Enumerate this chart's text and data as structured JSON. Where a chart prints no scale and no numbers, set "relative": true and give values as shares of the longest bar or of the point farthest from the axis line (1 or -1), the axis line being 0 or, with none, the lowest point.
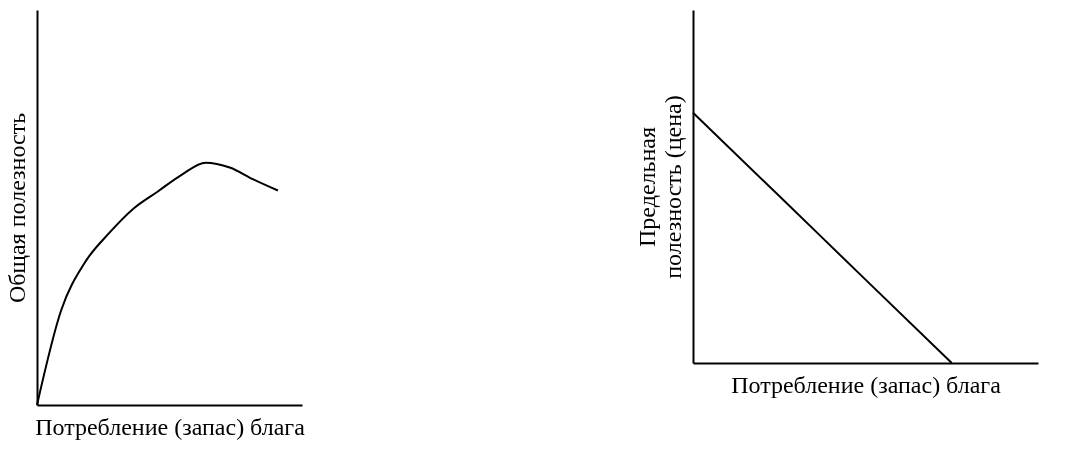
{
  "chart_data": [
    {
      "type": "line",
      "relative": true,
      "xlabel": "Потребление (запас) блага",
      "ylabel": "Общая полезность",
      "categories": [
        null,
        null,
        null,
        null,
        null,
        null,
        null,
        null,
        null,
        null,
        null,
        null
      ],
      "grid": false,
      "series": [
        {
          "color": "#000000",
          "values": [
            0,
            0.39,
            0.59,
            0.71,
            0.81,
            0.88,
            0.95,
            1,
            0.98,
            0.93,
            0.885,
            null
          ]
        }
      ]
    },
    {
      "type": "line",
      "relative": true,
      "xlabel": "Потребление (запас) блага",
      "ylabel": "Предельная\nполезность (цена)",
      "categories": [
        null,
        null,
        null,
        null,
        null
      ],
      "grid": false,
      "series": [
        {
          "color": "#000000",
          "values": [
            1,
            0.667,
            0.333,
            0,
            null
          ]
        }
      ]
    }
  ]
}
